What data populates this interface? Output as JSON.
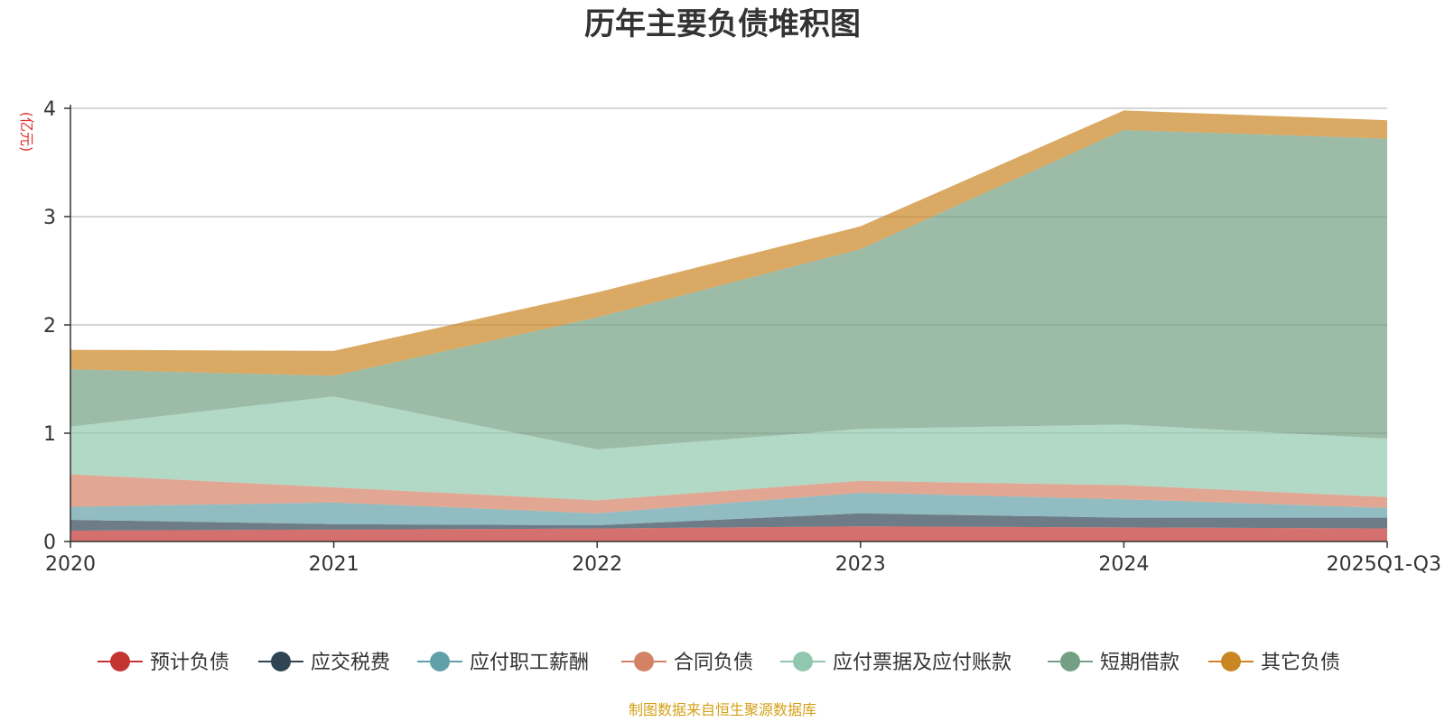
{
  "chart_data": {
    "type": "area",
    "stacked": true,
    "title": "历年主要负债堆积图",
    "ylabel": "(亿元)",
    "xlabel": "",
    "categories": [
      "2020",
      "2021",
      "2022",
      "2023",
      "2024",
      "2025Q1-Q3"
    ],
    "ylim": [
      0,
      4
    ],
    "yticks": [
      0,
      1,
      2,
      3,
      4
    ],
    "grid": true,
    "legend_position": "bottom",
    "series": [
      {
        "name": "预计负债",
        "color": "#c23531",
        "values": [
          0.1,
          0.11,
          0.12,
          0.14,
          0.13,
          0.12
        ]
      },
      {
        "name": "应交税费",
        "color": "#2f4554",
        "values": [
          0.1,
          0.05,
          0.03,
          0.12,
          0.09,
          0.1
        ]
      },
      {
        "name": "应付职工薪酬",
        "color": "#61a0a8",
        "values": [
          0.12,
          0.2,
          0.11,
          0.19,
          0.17,
          0.09
        ]
      },
      {
        "name": "合同负债",
        "color": "#d48265",
        "values": [
          0.3,
          0.14,
          0.12,
          0.11,
          0.13,
          0.1
        ]
      },
      {
        "name": "应付票据及应付账款",
        "color": "#91c7ae",
        "values": [
          0.44,
          0.84,
          0.47,
          0.48,
          0.56,
          0.54
        ]
      },
      {
        "name": "短期借款",
        "color": "#749f83",
        "values": [
          0.53,
          0.19,
          1.22,
          1.66,
          2.72,
          2.77
        ]
      },
      {
        "name": "其它负债",
        "color": "#ca8622",
        "values": [
          0.18,
          0.23,
          0.23,
          0.21,
          0.18,
          0.17
        ]
      }
    ],
    "source": "制图数据来自恒生聚源数据库"
  }
}
